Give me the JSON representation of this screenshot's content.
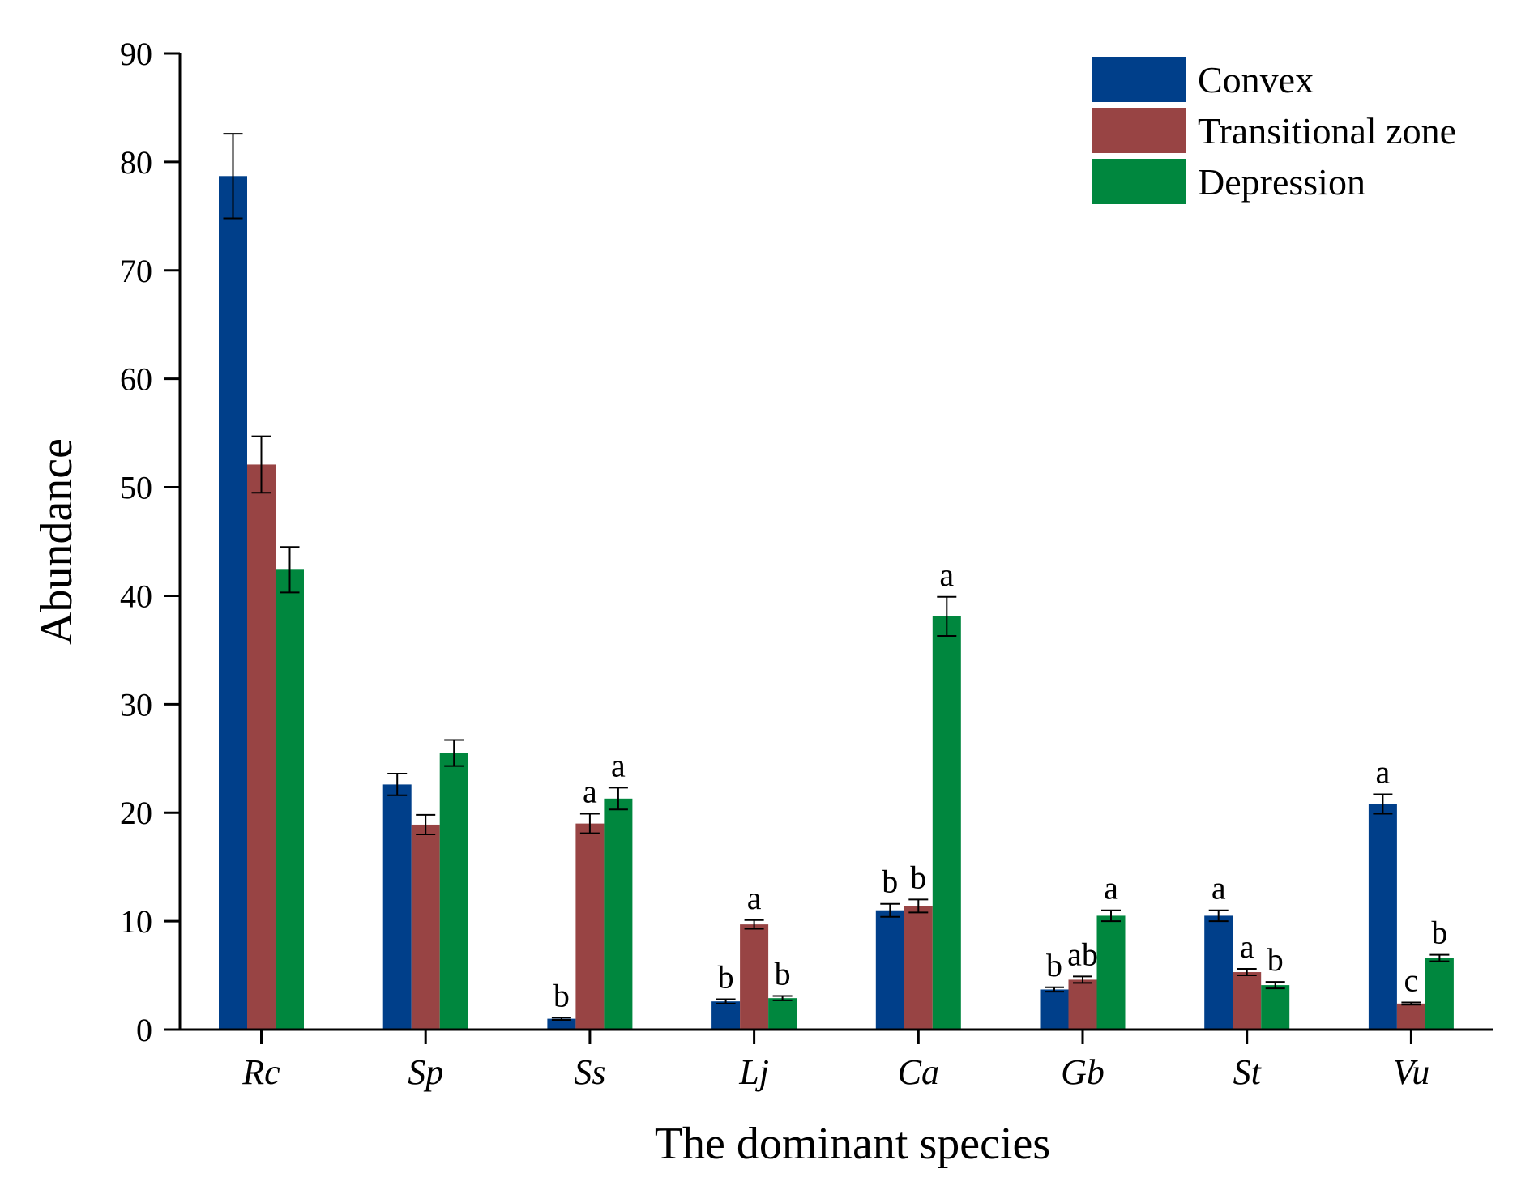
{
  "chart_data": {
    "type": "bar",
    "title": "",
    "xlabel": "The dominant species",
    "ylabel": "Abundance",
    "ylim": [
      0,
      90
    ],
    "yticks": [
      0,
      10,
      20,
      30,
      40,
      50,
      60,
      70,
      80,
      90
    ],
    "grid": false,
    "legend_position": "top-right",
    "categories": [
      "Rc",
      "Sp",
      "Ss",
      "Lj",
      "Ca",
      "Gb",
      "St",
      "Vu"
    ],
    "series": [
      {
        "name": "Convex",
        "color": "#003f8a",
        "values": [
          78.7,
          22.6,
          1.0,
          2.6,
          11.0,
          3.7,
          10.5,
          20.8
        ],
        "errors": [
          3.9,
          1.0,
          0.1,
          0.2,
          0.6,
          0.2,
          0.5,
          0.9
        ],
        "labels": [
          "",
          "",
          "b",
          "b",
          "b",
          "b",
          "a",
          "a"
        ]
      },
      {
        "name": "Transitional zone",
        "color": "#984444",
        "values": [
          52.1,
          18.9,
          19.0,
          9.7,
          11.4,
          4.6,
          5.3,
          2.4
        ],
        "errors": [
          2.6,
          0.9,
          0.9,
          0.4,
          0.6,
          0.3,
          0.3,
          0.1
        ],
        "labels": [
          "",
          "",
          "a",
          "a",
          "b",
          "ab",
          "a",
          "c"
        ]
      },
      {
        "name": "Depression",
        "color": "#00873e",
        "values": [
          42.4,
          25.5,
          21.3,
          2.9,
          38.1,
          10.5,
          4.1,
          6.6
        ],
        "errors": [
          2.1,
          1.2,
          1.0,
          0.2,
          1.8,
          0.5,
          0.3,
          0.3
        ],
        "labels": [
          "",
          "",
          "a",
          "b",
          "a",
          "a",
          "b",
          "b"
        ]
      }
    ]
  }
}
